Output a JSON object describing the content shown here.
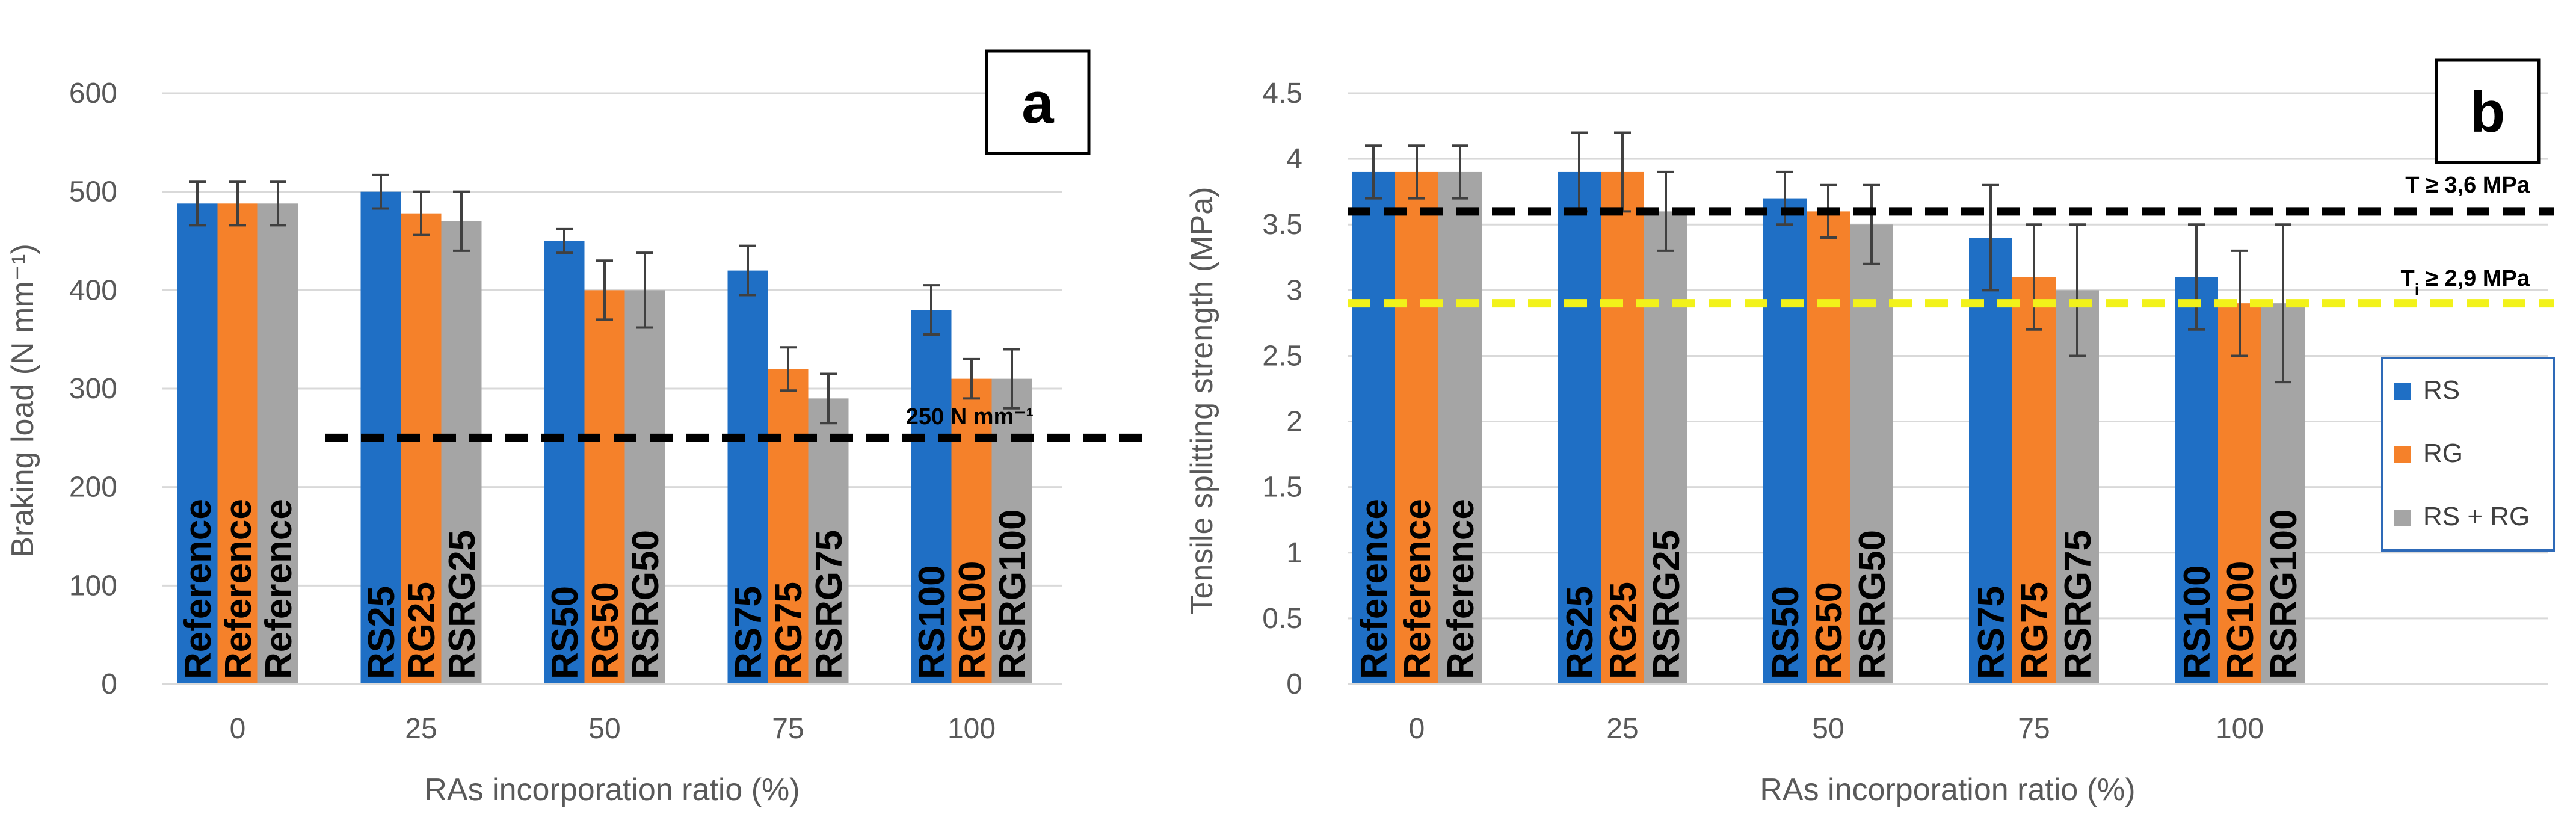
{
  "chart_data": [
    {
      "type": "bar",
      "panel_label": "a",
      "categories": [
        "0",
        "25",
        "50",
        "75",
        "100"
      ],
      "series": [
        {
          "name": "RS",
          "color": "#1f6fc5",
          "values": [
            488,
            500,
            450,
            420,
            380
          ],
          "errors": [
            22,
            17,
            12,
            25,
            25
          ],
          "labels": [
            "Reference",
            "RS25",
            "RS50",
            "RS75",
            "RS100"
          ]
        },
        {
          "name": "RG",
          "color": "#f5812a",
          "values": [
            488,
            478,
            400,
            320,
            310
          ],
          "errors": [
            22,
            22,
            30,
            22,
            20
          ],
          "labels": [
            "Reference",
            "RG25",
            "RG50",
            "RG75",
            "RG100"
          ]
        },
        {
          "name": "RS + RG",
          "color": "#a5a5a5",
          "values": [
            488,
            470,
            400,
            290,
            310
          ],
          "errors": [
            22,
            30,
            38,
            25,
            30
          ],
          "labels": [
            "Reference",
            "RSRG25",
            "RSRG50",
            "RSRG75",
            "RSRG100"
          ]
        }
      ],
      "xlabel": "RAs incorporation ratio (%)",
      "ylabel": "Braking load (N mm⁻¹)",
      "ylim": [
        0,
        600
      ],
      "yticks": [
        "0",
        "100",
        "200",
        "300",
        "400",
        "500",
        "600"
      ],
      "grid": true,
      "reference_lines": [
        {
          "value": 250,
          "color": "#000000",
          "label": "250 N mm⁻¹"
        }
      ]
    },
    {
      "type": "bar",
      "panel_label": "b",
      "categories": [
        "0",
        "25",
        "50",
        "75",
        "100"
      ],
      "series": [
        {
          "name": "RS",
          "color": "#1f6fc5",
          "values": [
            3.9,
            3.9,
            3.7,
            3.4,
            3.1
          ],
          "errors": [
            0.2,
            0.3,
            0.2,
            0.4,
            0.4
          ],
          "labels": [
            "Reference",
            "RS25",
            "RS50",
            "RS75",
            "RS100"
          ]
        },
        {
          "name": "RG",
          "color": "#f5812a",
          "values": [
            3.9,
            3.9,
            3.6,
            3.1,
            2.9
          ],
          "errors": [
            0.2,
            0.3,
            0.2,
            0.4,
            0.4
          ],
          "labels": [
            "Reference",
            "RG25",
            "RG50",
            "RG75",
            "RG100"
          ]
        },
        {
          "name": "RS + RG",
          "color": "#a5a5a5",
          "values": [
            3.9,
            3.6,
            3.5,
            3.0,
            2.9
          ],
          "errors": [
            0.2,
            0.3,
            0.3,
            0.5,
            0.6
          ],
          "labels": [
            "Reference",
            "RSRG25",
            "RSRG50",
            "RSRG75",
            "RSRG100"
          ]
        }
      ],
      "xlabel": "RAs incorporation ratio (%)",
      "ylabel": "Tensile splitting strength (MPa)",
      "ylim": [
        0,
        4.5
      ],
      "yticks": [
        "0",
        "0.5",
        "1",
        "1.5",
        "2",
        "2.5",
        "3",
        "3.5",
        "4",
        "4.5"
      ],
      "grid": true,
      "legend": [
        "RS",
        "RG",
        "RS + RG"
      ],
      "legend_position": "right",
      "reference_lines": [
        {
          "value": 3.6,
          "color": "#000000",
          "label": "T ≥ 3,6 MPa",
          "sub": ""
        },
        {
          "value": 2.9,
          "color": "#f2f21a",
          "label": "T",
          "sub": "i",
          "label_rest": " ≥ 2,9 MPa"
        }
      ]
    }
  ]
}
